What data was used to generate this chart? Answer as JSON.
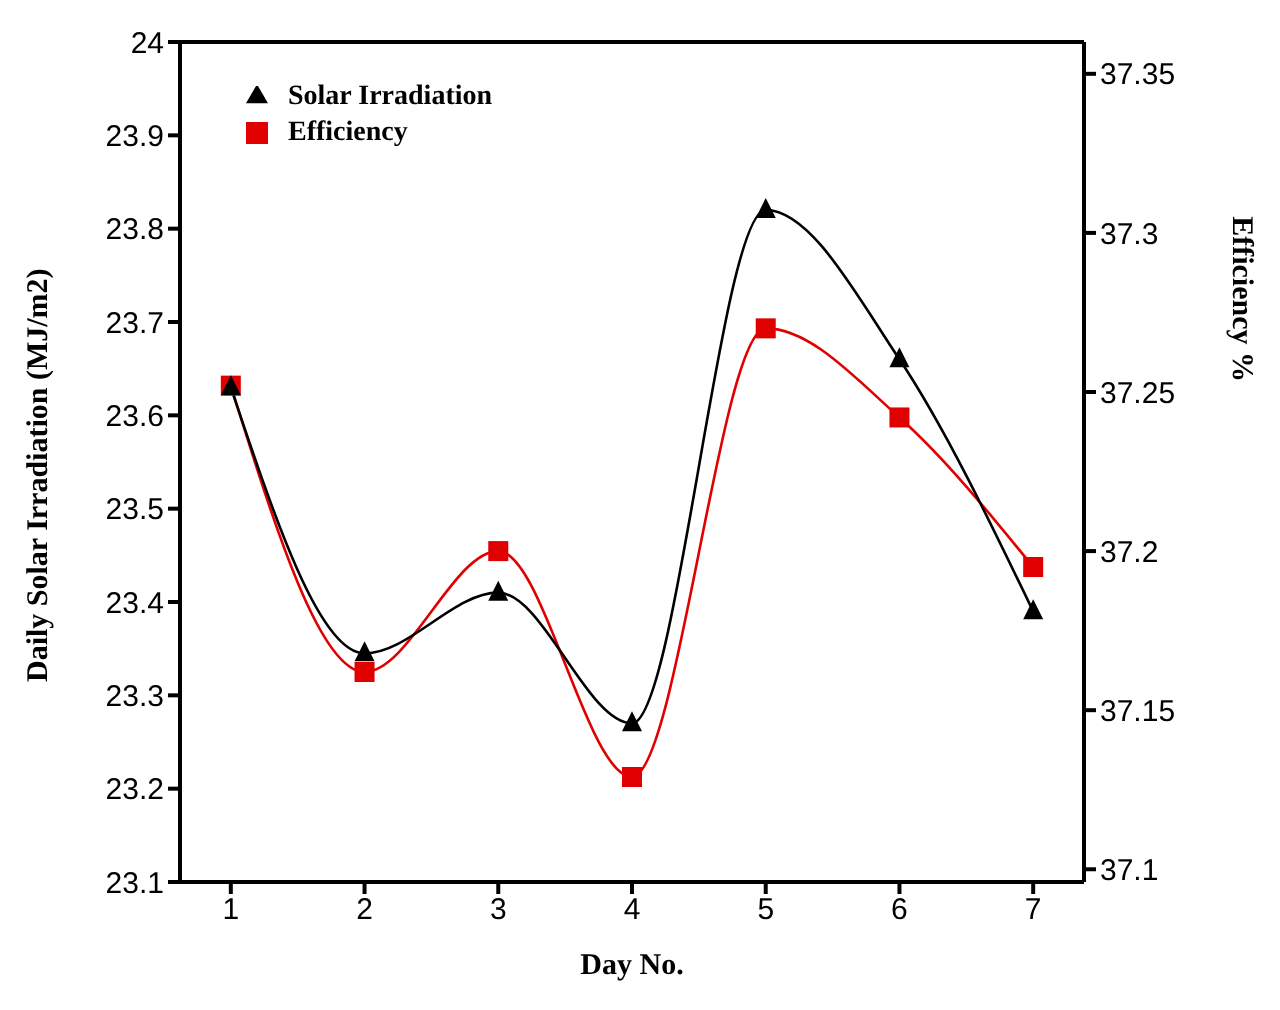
{
  "chart_data": {
    "type": "line",
    "xlabel": "Day No.",
    "ylabel": "Daily Solar Irradiation (MJ/m2)",
    "y2label": "Efficiency %",
    "x": [
      1,
      2,
      3,
      4,
      5,
      6,
      7
    ],
    "xlim": [
      0.62,
      7.38
    ],
    "xticks": [
      1,
      2,
      3,
      4,
      5,
      6,
      7
    ],
    "ylim": [
      23.1,
      24
    ],
    "yticks": [
      23.1,
      23.2,
      23.3,
      23.4,
      23.5,
      23.6,
      23.7,
      23.8,
      23.9,
      24
    ],
    "y2lim": [
      37.096,
      37.36
    ],
    "y2ticks": [
      37.1,
      37.15,
      37.2,
      37.25,
      37.3,
      37.35
    ],
    "series": [
      {
        "name": "Solar Irradiation",
        "color": "#000000",
        "marker": "triangle",
        "values": [
          23.63,
          23.345,
          23.41,
          23.27,
          23.82,
          23.66,
          23.39
        ]
      },
      {
        "name": "Efficiency",
        "color": "#e00000",
        "marker": "square",
        "axis": "y2",
        "values": [
          37.252,
          37.162,
          37.2,
          37.129,
          37.27,
          37.242,
          37.195
        ]
      }
    ],
    "legend": "top left",
    "grid": false,
    "line_style": "solid"
  }
}
